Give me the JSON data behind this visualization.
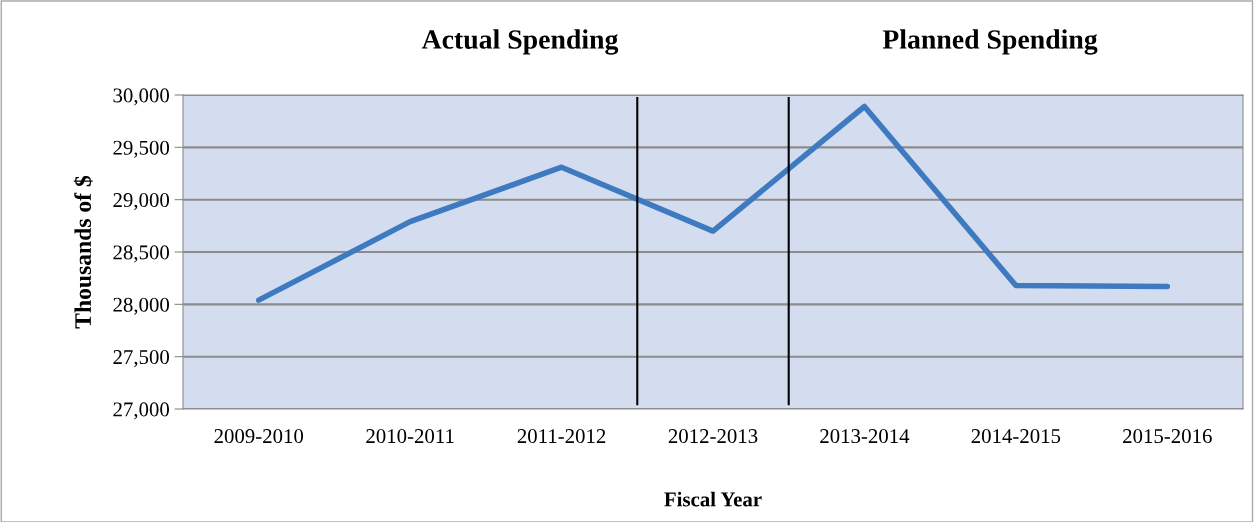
{
  "chart_data": {
    "type": "line",
    "xlabel": "Fiscal Year",
    "ylabel": "Thousands of $",
    "categories": [
      "2009-2010",
      "2010-2011",
      "2011-2012",
      "2012-2013",
      "2013-2014",
      "2014-2015",
      "2015-2016"
    ],
    "series": [
      {
        "color": "#3d7abf",
        "values": [
          28040,
          28790,
          29310,
          28700,
          29890,
          28180,
          28170
        ]
      }
    ],
    "ylim": [
      27000,
      30000
    ],
    "yticks": [
      {
        "value": 27000,
        "label": "27,000"
      },
      {
        "value": 27500,
        "label": "27,500"
      },
      {
        "value": 28000,
        "label": "28,000"
      },
      {
        "value": 28500,
        "label": "28,500"
      },
      {
        "value": 29000,
        "label": "29,000"
      },
      {
        "value": 29500,
        "label": "29,500"
      },
      {
        "value": 30000,
        "label": "30,000"
      }
    ],
    "annotations": [
      "Actual Spending",
      "Planned Spending"
    ],
    "grid": "y",
    "legend": false
  }
}
